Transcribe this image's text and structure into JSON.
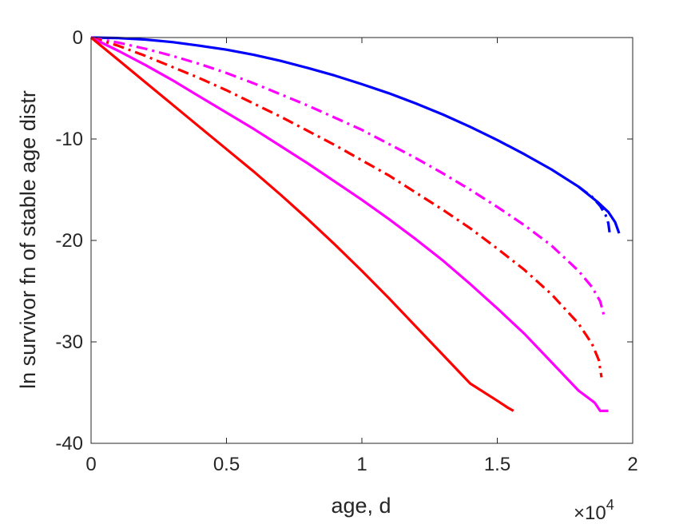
{
  "chart_data": {
    "type": "line",
    "title": "",
    "xlabel": "age, d",
    "ylabel": "ln survivor fn of stable age distr",
    "x_multiplier_base": "×10",
    "x_multiplier_exp": "4",
    "xlim": [
      0,
      2
    ],
    "ylim": [
      -40,
      0
    ],
    "xticks": [
      0,
      0.5,
      1,
      1.5,
      2
    ],
    "xtick_labels": [
      "0",
      "0.5",
      "1",
      "1.5",
      "2"
    ],
    "yticks": [
      -40,
      -30,
      -20,
      -10,
      0
    ],
    "ytick_labels": [
      "-40",
      "-30",
      "-20",
      "-10",
      "0"
    ],
    "grid": false,
    "legend": "none",
    "series": [
      {
        "color": "#0000ff",
        "dash": "solid",
        "points": [
          [
            0,
            0
          ],
          [
            0.1,
            -0.05
          ],
          [
            0.2,
            -0.2
          ],
          [
            0.3,
            -0.45
          ],
          [
            0.4,
            -0.8
          ],
          [
            0.5,
            -1.2
          ],
          [
            0.6,
            -1.7
          ],
          [
            0.7,
            -2.3
          ],
          [
            0.8,
            -3
          ],
          [
            0.9,
            -3.75
          ],
          [
            1.0,
            -4.6
          ],
          [
            1.1,
            -5.5
          ],
          [
            1.2,
            -6.5
          ],
          [
            1.3,
            -7.6
          ],
          [
            1.4,
            -8.8
          ],
          [
            1.5,
            -10.1
          ],
          [
            1.6,
            -11.5
          ],
          [
            1.7,
            -13
          ],
          [
            1.8,
            -14.7
          ],
          [
            1.87,
            -16.2
          ],
          [
            1.91,
            -17.2
          ],
          [
            1.935,
            -18.2
          ],
          [
            1.95,
            -19.3
          ]
        ]
      },
      {
        "color": "#0000ff",
        "dash": "dashdot",
        "points": [
          [
            1.8,
            -14.7
          ],
          [
            1.85,
            -15.7
          ],
          [
            1.88,
            -16.6
          ],
          [
            1.9,
            -17.5
          ],
          [
            1.91,
            -18.3
          ],
          [
            1.915,
            -19.3
          ]
        ]
      },
      {
        "color": "#ff00ff",
        "dash": "dashdot",
        "points": [
          [
            0,
            0
          ],
          [
            0.1,
            -0.5
          ],
          [
            0.2,
            -1.1
          ],
          [
            0.3,
            -1.8
          ],
          [
            0.4,
            -2.6
          ],
          [
            0.5,
            -3.5
          ],
          [
            0.6,
            -4.5
          ],
          [
            0.7,
            -5.6
          ],
          [
            0.8,
            -6.7
          ],
          [
            0.9,
            -7.9
          ],
          [
            1.0,
            -9.1
          ],
          [
            1.1,
            -10.5
          ],
          [
            1.2,
            -11.9
          ],
          [
            1.3,
            -13.4
          ],
          [
            1.4,
            -15
          ],
          [
            1.5,
            -16.7
          ],
          [
            1.6,
            -18.5
          ],
          [
            1.7,
            -20.5
          ],
          [
            1.8,
            -23
          ],
          [
            1.85,
            -24.6
          ],
          [
            1.88,
            -26
          ],
          [
            1.895,
            -27.5
          ]
        ]
      },
      {
        "color": "#ff0000",
        "dash": "dashdot",
        "points": [
          [
            0,
            0
          ],
          [
            0.1,
            -0.8
          ],
          [
            0.2,
            -1.8
          ],
          [
            0.3,
            -2.9
          ],
          [
            0.4,
            -4
          ],
          [
            0.5,
            -5.2
          ],
          [
            0.6,
            -6.5
          ],
          [
            0.7,
            -7.8
          ],
          [
            0.8,
            -9.2
          ],
          [
            0.9,
            -10.6
          ],
          [
            1.0,
            -12.1
          ],
          [
            1.1,
            -13.6
          ],
          [
            1.2,
            -15.3
          ],
          [
            1.3,
            -17
          ],
          [
            1.4,
            -18.8
          ],
          [
            1.5,
            -20.8
          ],
          [
            1.6,
            -22.9
          ],
          [
            1.7,
            -25.3
          ],
          [
            1.8,
            -28.2
          ],
          [
            1.85,
            -30.2
          ],
          [
            1.875,
            -31.8
          ],
          [
            1.885,
            -33.5
          ]
        ]
      },
      {
        "color": "#ff00ff",
        "dash": "solid",
        "points": [
          [
            0,
            0
          ],
          [
            0.1,
            -1.3
          ],
          [
            0.2,
            -2.7
          ],
          [
            0.3,
            -4.2
          ],
          [
            0.4,
            -5.8
          ],
          [
            0.5,
            -7.4
          ],
          [
            0.6,
            -9
          ],
          [
            0.7,
            -10.7
          ],
          [
            0.8,
            -12.4
          ],
          [
            0.9,
            -14.2
          ],
          [
            1.0,
            -16
          ],
          [
            1.1,
            -17.9
          ],
          [
            1.2,
            -19.9
          ],
          [
            1.3,
            -22
          ],
          [
            1.4,
            -24.3
          ],
          [
            1.5,
            -26.7
          ],
          [
            1.6,
            -29.2
          ],
          [
            1.7,
            -32
          ],
          [
            1.8,
            -34.8
          ],
          [
            1.86,
            -36
          ],
          [
            1.88,
            -36.8
          ],
          [
            1.91,
            -36.8
          ]
        ]
      },
      {
        "color": "#ff0000",
        "dash": "solid",
        "points": [
          [
            0,
            0
          ],
          [
            0.1,
            -2.2
          ],
          [
            0.2,
            -4.4
          ],
          [
            0.3,
            -6.6
          ],
          [
            0.4,
            -8.8
          ],
          [
            0.5,
            -11
          ],
          [
            0.6,
            -13.2
          ],
          [
            0.7,
            -15.5
          ],
          [
            0.8,
            -17.9
          ],
          [
            0.9,
            -20.4
          ],
          [
            1.0,
            -23
          ],
          [
            1.1,
            -25.7
          ],
          [
            1.2,
            -28.5
          ],
          [
            1.3,
            -31.3
          ],
          [
            1.4,
            -34.1
          ],
          [
            1.5,
            -35.8
          ],
          [
            1.54,
            -36.5
          ],
          [
            1.56,
            -36.8
          ]
        ]
      }
    ]
  }
}
